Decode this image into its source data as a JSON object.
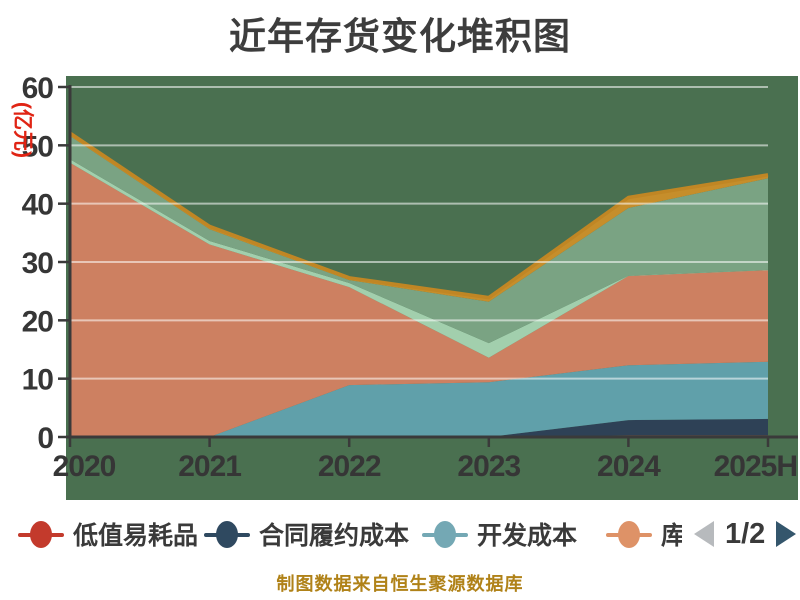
{
  "title": "近年存货变化堆积图",
  "footer": "制图数据来自恒生聚源数据库",
  "y_axis": {
    "name": "(亿元)",
    "name_color": "#e02414",
    "ticks": [
      0,
      10,
      20,
      30,
      40,
      50,
      60
    ]
  },
  "x_axis": {
    "labels": [
      "2020",
      "2021",
      "2022",
      "2023",
      "2024",
      "2025H"
    ]
  },
  "legend": {
    "items": [
      {
        "label": "低值易耗品",
        "color": "#c33a2c"
      },
      {
        "label": "合同履约成本",
        "color": "#2f4960"
      },
      {
        "label": "开发成本",
        "color": "#74a8b4"
      },
      {
        "label": "库",
        "color": "#de9267",
        "truncated": true
      }
    ],
    "page_indicator": "1/2",
    "prev_arrow_color": "#b7babd",
    "next_arrow_color": "#34566c"
  },
  "chart_data": {
    "type": "area",
    "stacked": true,
    "title": "近年存货变化堆积图",
    "ylabel": "(亿元)",
    "ylim": [
      0,
      60
    ],
    "grid": true,
    "legend_position": "bottom",
    "plot_background": "#4a7050",
    "gridline_color": "rgba(255,255,255,0.55)",
    "axis_color": "#3a3a3a",
    "categories": [
      "2020",
      "2021",
      "2022",
      "2023",
      "2024",
      "2025H"
    ],
    "series": [
      {
        "name": "低值易耗品",
        "color": "#ad3a2b",
        "values": [
          0,
          0,
          0,
          0,
          0.3,
          0.3
        ]
      },
      {
        "name": "合同履约成本",
        "color": "#2e4156",
        "values": [
          0,
          0,
          0,
          0,
          2.6,
          2.8
        ]
      },
      {
        "name": "开发成本",
        "color": "#60a0aa",
        "values": [
          0,
          0,
          8.9,
          9.4,
          9.4,
          9.8
        ]
      },
      {
        "name": "库",
        "color": "#cd8061",
        "values": [
          47,
          33,
          16.8,
          4.2,
          15.3,
          15.7
        ]
      },
      {
        "name": "",
        "color": "#a2cfad",
        "values": [
          0.6,
          0.6,
          0.7,
          2.5,
          0.05,
          0.05
        ]
      },
      {
        "name": "",
        "color": "#7aa383",
        "values": [
          4.0,
          2.0,
          0.5,
          7.1,
          11.6,
          15.7
        ]
      },
      {
        "name": "",
        "color": "#c68e2b",
        "values": [
          0.5,
          0.5,
          0.4,
          0.7,
          1.8,
          0.6
        ],
        "top_line": true,
        "line_color": "#c08624"
      }
    ]
  }
}
